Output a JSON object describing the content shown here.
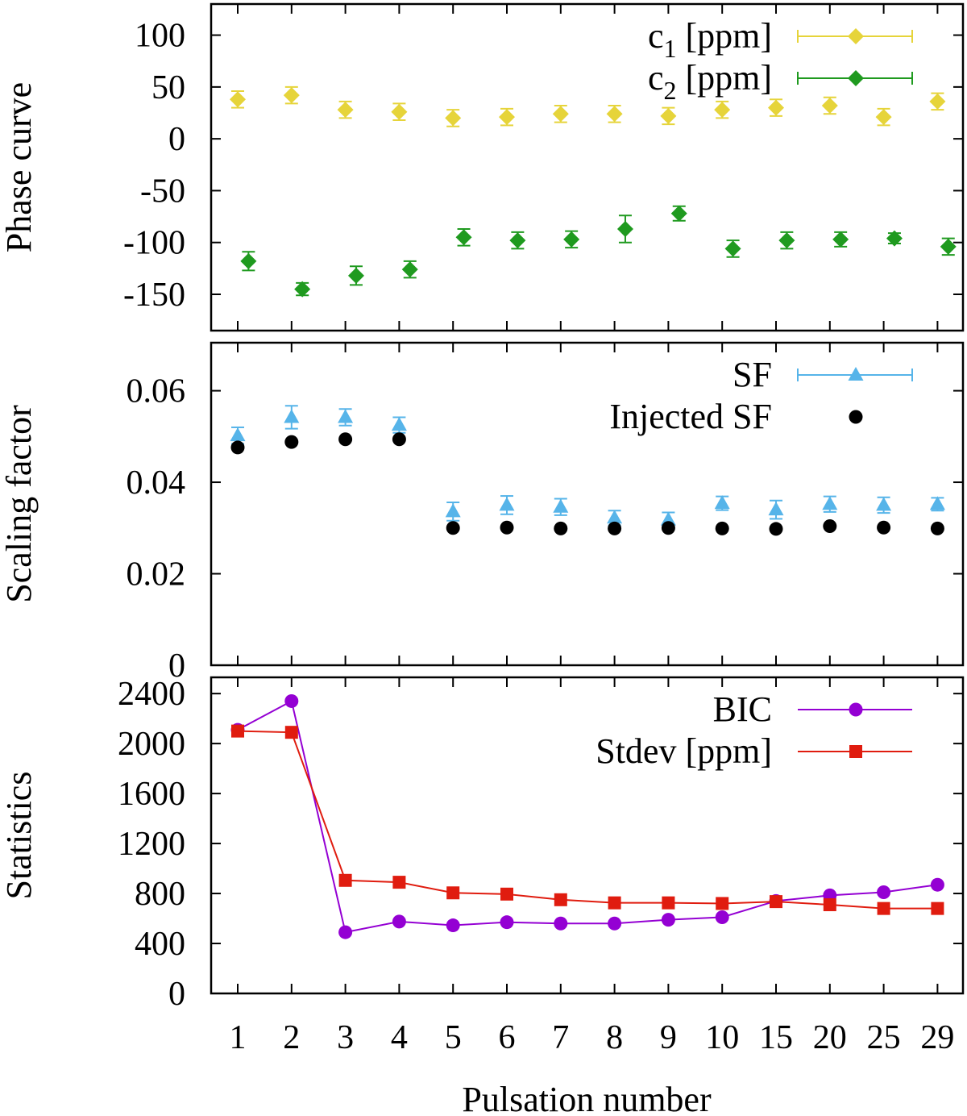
{
  "figure": {
    "xlabel": "Pulsation number"
  },
  "x_categories": [
    "1",
    "2",
    "3",
    "4",
    "5",
    "6",
    "7",
    "8",
    "9",
    "10",
    "15",
    "20",
    "25",
    "29"
  ],
  "chart_data": [
    {
      "type": "scatter",
      "panel": "phase",
      "ylabel": "Phase curve",
      "ylim": [
        -185,
        130
      ],
      "yticks": [
        100,
        50,
        0,
        -50,
        -100,
        -150
      ],
      "ytick_labels": [
        "100",
        "50",
        "0",
        "-50",
        "-100",
        "-150"
      ],
      "legend_position": "top-right",
      "series": [
        {
          "name": "c1 [ppm]",
          "legend": {
            "base": "c",
            "sub": "1",
            "rest": " [ppm]"
          },
          "color": "#e6d43a",
          "marker": "diamond",
          "offset": 0,
          "values": [
            38,
            42,
            28,
            26,
            20,
            21,
            24,
            24,
            22,
            28,
            30,
            32,
            21,
            36
          ],
          "errors": [
            8,
            8,
            8,
            8,
            8,
            8,
            8,
            8,
            8,
            8,
            8,
            8,
            8,
            8
          ]
        },
        {
          "name": "c2 [ppm]",
          "legend": {
            "base": "c",
            "sub": "2",
            "rest": " [ppm]"
          },
          "color": "#1f9a1f",
          "marker": "diamond",
          "offset": 0.2,
          "values": [
            -118,
            -145,
            -132,
            -126,
            -95,
            -98,
            -97,
            -87,
            -72,
            -106,
            -98,
            -97,
            -96,
            -104
          ],
          "errors": [
            9,
            6,
            9,
            8,
            8,
            8,
            8,
            13,
            7,
            8,
            8,
            7,
            5,
            8
          ]
        }
      ]
    },
    {
      "type": "scatter",
      "panel": "scaling",
      "ylabel": "Scaling factor",
      "ylim": [
        0,
        0.0705
      ],
      "yticks": [
        0.06,
        0.04,
        0.02,
        0
      ],
      "ytick_labels": [
        "0.06",
        "0.04",
        "0.02",
        "0"
      ],
      "legend_position": "top-right",
      "series": [
        {
          "name": "SF",
          "color": "#56b4e9",
          "marker": "triangle",
          "offset": 0,
          "values": [
            0.0502,
            0.0542,
            0.0542,
            0.0525,
            0.0336,
            0.035,
            0.0346,
            0.0322,
            0.0318,
            0.0354,
            0.034,
            0.0352,
            0.035,
            0.0352
          ],
          "errors": [
            0.0018,
            0.0025,
            0.0018,
            0.0017,
            0.002,
            0.002,
            0.0018,
            0.0016,
            0.0016,
            0.0015,
            0.002,
            0.0017,
            0.0017,
            0.0014
          ]
        },
        {
          "name": "Injected SF",
          "color": "#000000",
          "marker": "circle",
          "offset": 0,
          "values": [
            0.0476,
            0.0488,
            0.0494,
            0.0494,
            0.03,
            0.0301,
            0.0299,
            0.0299,
            0.03,
            0.0299,
            0.0298,
            0.0304,
            0.0301,
            0.0299
          ],
          "errors": null
        }
      ]
    },
    {
      "type": "line",
      "panel": "statistics",
      "ylabel": "Statistics",
      "ylim": [
        0,
        2530
      ],
      "yticks": [
        2400,
        2000,
        1600,
        1200,
        800,
        400,
        0
      ],
      "ytick_labels": [
        "2400",
        "2000",
        "1600",
        "1200",
        "800",
        "400",
        "0"
      ],
      "legend_position": "top-right",
      "series": [
        {
          "name": "BIC",
          "color": "#9400d3",
          "marker": "circle",
          "values": [
            2110,
            2340,
            490,
            575,
            545,
            570,
            560,
            560,
            590,
            610,
            740,
            785,
            810,
            870
          ]
        },
        {
          "name": "Stdev [ppm]",
          "color": "#e01c0f",
          "marker": "square",
          "values": [
            2100,
            2090,
            905,
            890,
            805,
            795,
            750,
            725,
            725,
            720,
            735,
            710,
            680,
            680
          ]
        }
      ]
    }
  ]
}
